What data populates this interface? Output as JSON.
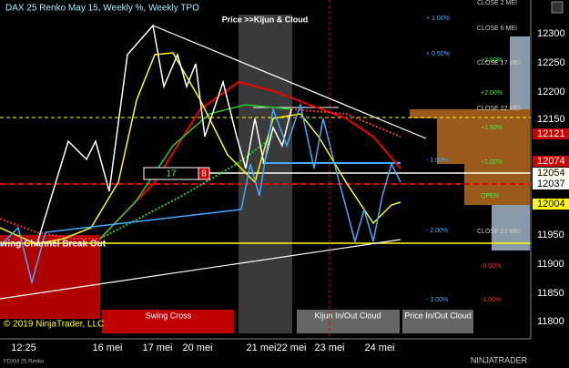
{
  "header": {
    "title": "DAX 25 Renko May 15, Weekly %, Weekly TPO"
  },
  "price_axis": [
    "12300",
    "12250",
    "12200",
    "12150",
    "11950",
    "11900",
    "11850",
    "11800"
  ],
  "price_boxes": [
    "12121",
    "12074",
    "12054",
    "12037",
    "12004"
  ],
  "time_axis": [
    "12:25",
    "16 mei",
    "17 mei",
    "20 mei",
    "21 mei",
    "22 mei",
    "23 mei",
    "24 mei"
  ],
  "weekly_levels": [
    "+ 1.00%",
    "+ 0.50%",
    "- 1.00%",
    "- 2.00%",
    "- 3.00%"
  ],
  "tpo_levels": [
    "+2.50%",
    "+2.00%",
    "+1.50%",
    "+1.00%",
    "OPEN",
    "-0.50%",
    "-1.00%"
  ],
  "closes": [
    "CLOSE 2 MEI",
    "CLOSE 6 MEI",
    "CLOSE 17 MEI",
    "CLOSE 22 MEI",
    "CLOSE 23 MEI"
  ],
  "signals": {
    "price_kijun": "Price >>Kijun & Cloud",
    "swing_break": "Swing Channel Break Out",
    "swing_cross": "Swing Cross",
    "kijun_cloud": "Kijun In/Out Cloud",
    "price_cloud": "Price In/Out Cloud"
  },
  "counter": {
    "left": "17",
    "right": "8"
  },
  "footer": {
    "copyright": "© 2019 NinjaTrader, LLC",
    "instrument": "FDXM 25 Renko",
    "logo": "NINJATRADER"
  }
}
